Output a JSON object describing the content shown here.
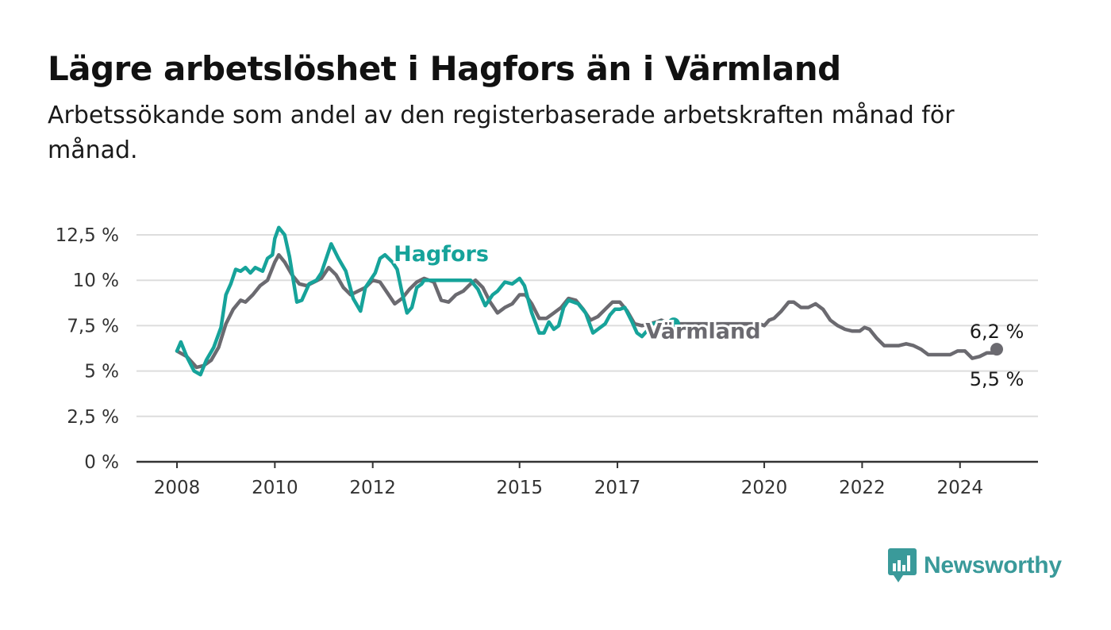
{
  "header": {
    "title": "Lägre arbetslöshet i Hagfors än i Värmland",
    "subtitle": "Arbetssökande som andel av den registerbaserade arbetskraften månad för månad."
  },
  "logo": {
    "text": "Newsworthy",
    "icon": "newsworthy-logo-icon"
  },
  "colors": {
    "hagfors": "#16a39a",
    "varmland": "#6b6a70",
    "grid": "#dddddd",
    "axis": "#333333"
  },
  "chart_data": {
    "type": "line",
    "xlim": [
      2008.0,
      2024.75
    ],
    "ylim": [
      0,
      12.5
    ],
    "x_ticks": [
      {
        "value": 2008,
        "label": "2008"
      },
      {
        "value": 2010,
        "label": "2010"
      },
      {
        "value": 2012,
        "label": "2012"
      },
      {
        "value": 2015,
        "label": "2015"
      },
      {
        "value": 2017,
        "label": "2017"
      },
      {
        "value": 2020,
        "label": "2020"
      },
      {
        "value": 2022,
        "label": "2022"
      },
      {
        "value": 2024,
        "label": "2024"
      }
    ],
    "y_ticks": [
      {
        "value": 0,
        "label": "0 %"
      },
      {
        "value": 2.5,
        "label": "2,5 %"
      },
      {
        "value": 5,
        "label": "5 %"
      },
      {
        "value": 7.5,
        "label": "7,5 %"
      },
      {
        "value": 10,
        "label": "10 %"
      },
      {
        "value": 12.5,
        "label": "12,5 %"
      }
    ],
    "grid": true,
    "series": [
      {
        "name": "Värmland",
        "color": "#6b6a70",
        "label": "Värmland",
        "end_label": "6,2 %",
        "points": [
          [
            2008.0,
            6.1
          ],
          [
            2008.2,
            5.8
          ],
          [
            2008.4,
            5.2
          ],
          [
            2008.55,
            5.3
          ],
          [
            2008.7,
            5.6
          ],
          [
            2008.85,
            6.3
          ],
          [
            2009.0,
            7.6
          ],
          [
            2009.15,
            8.4
          ],
          [
            2009.3,
            8.9
          ],
          [
            2009.4,
            8.8
          ],
          [
            2009.55,
            9.2
          ],
          [
            2009.7,
            9.7
          ],
          [
            2009.85,
            10.0
          ],
          [
            2010.0,
            11.0
          ],
          [
            2010.08,
            11.4
          ],
          [
            2010.2,
            11.0
          ],
          [
            2010.35,
            10.3
          ],
          [
            2010.5,
            9.8
          ],
          [
            2010.65,
            9.7
          ],
          [
            2010.8,
            9.9
          ],
          [
            2010.95,
            10.1
          ],
          [
            2011.1,
            10.7
          ],
          [
            2011.25,
            10.3
          ],
          [
            2011.4,
            9.6
          ],
          [
            2011.55,
            9.2
          ],
          [
            2011.7,
            9.4
          ],
          [
            2011.85,
            9.6
          ],
          [
            2012.0,
            10.0
          ],
          [
            2012.15,
            9.9
          ],
          [
            2012.3,
            9.3
          ],
          [
            2012.45,
            8.7
          ],
          [
            2012.6,
            9.0
          ],
          [
            2012.75,
            9.5
          ],
          [
            2012.9,
            9.9
          ],
          [
            2013.05,
            10.1
          ],
          [
            2013.25,
            9.9
          ],
          [
            2013.4,
            8.9
          ],
          [
            2013.55,
            8.8
          ],
          [
            2013.7,
            9.2
          ],
          [
            2013.85,
            9.4
          ],
          [
            2014.0,
            9.8
          ],
          [
            2014.1,
            10.0
          ],
          [
            2014.25,
            9.6
          ],
          [
            2014.4,
            8.8
          ],
          [
            2014.55,
            8.2
          ],
          [
            2014.7,
            8.5
          ],
          [
            2014.85,
            8.7
          ],
          [
            2015.0,
            9.2
          ],
          [
            2015.12,
            9.2
          ],
          [
            2015.25,
            8.7
          ],
          [
            2015.4,
            7.9
          ],
          [
            2015.55,
            7.9
          ],
          [
            2015.7,
            8.2
          ],
          [
            2015.85,
            8.5
          ],
          [
            2016.0,
            9.0
          ],
          [
            2016.15,
            8.9
          ],
          [
            2016.3,
            8.4
          ],
          [
            2016.45,
            7.8
          ],
          [
            2016.6,
            8.0
          ],
          [
            2016.75,
            8.4
          ],
          [
            2016.9,
            8.8
          ],
          [
            2017.05,
            8.8
          ],
          [
            2017.2,
            8.3
          ],
          [
            2017.35,
            7.6
          ],
          [
            2017.5,
            7.5
          ],
          [
            2017.65,
            7.6
          ],
          [
            2017.8,
            7.7
          ],
          [
            2017.9,
            7.8
          ],
          [
            2018.05,
            7.6
          ],
          [
            2019.9,
            7.6
          ],
          [
            2020.0,
            7.5
          ],
          [
            2020.1,
            7.8
          ],
          [
            2020.2,
            7.9
          ],
          [
            2020.35,
            8.3
          ],
          [
            2020.5,
            8.8
          ],
          [
            2020.6,
            8.8
          ],
          [
            2020.75,
            8.5
          ],
          [
            2020.9,
            8.5
          ],
          [
            2021.05,
            8.7
          ],
          [
            2021.2,
            8.4
          ],
          [
            2021.35,
            7.8
          ],
          [
            2021.5,
            7.5
          ],
          [
            2021.65,
            7.3
          ],
          [
            2021.8,
            7.2
          ],
          [
            2021.95,
            7.2
          ],
          [
            2022.05,
            7.4
          ],
          [
            2022.15,
            7.3
          ],
          [
            2022.3,
            6.8
          ],
          [
            2022.45,
            6.4
          ],
          [
            2022.6,
            6.4
          ],
          [
            2022.75,
            6.4
          ],
          [
            2022.9,
            6.5
          ],
          [
            2023.05,
            6.4
          ],
          [
            2023.2,
            6.2
          ],
          [
            2023.35,
            5.9
          ],
          [
            2023.5,
            5.9
          ],
          [
            2023.65,
            5.9
          ],
          [
            2023.8,
            5.9
          ],
          [
            2023.95,
            6.1
          ],
          [
            2024.1,
            6.1
          ],
          [
            2024.25,
            5.7
          ],
          [
            2024.4,
            5.8
          ],
          [
            2024.55,
            6.0
          ],
          [
            2024.67,
            6.0
          ],
          [
            2024.75,
            6.2
          ]
        ]
      },
      {
        "name": "Hagfors",
        "color": "#16a39a",
        "label": "Hagfors",
        "end_label": "5,5 %",
        "points": [
          [
            2008.0,
            6.1
          ],
          [
            2008.08,
            6.6
          ],
          [
            2008.2,
            5.8
          ],
          [
            2008.35,
            5.0
          ],
          [
            2008.48,
            4.8
          ],
          [
            2008.6,
            5.6
          ],
          [
            2008.75,
            6.3
          ],
          [
            2008.9,
            7.4
          ],
          [
            2009.0,
            9.2
          ],
          [
            2009.1,
            9.8
          ],
          [
            2009.2,
            10.6
          ],
          [
            2009.3,
            10.5
          ],
          [
            2009.4,
            10.7
          ],
          [
            2009.5,
            10.4
          ],
          [
            2009.6,
            10.7
          ],
          [
            2009.75,
            10.5
          ],
          [
            2009.85,
            11.2
          ],
          [
            2009.95,
            11.4
          ],
          [
            2010.0,
            12.3
          ],
          [
            2010.08,
            12.9
          ],
          [
            2010.2,
            12.5
          ],
          [
            2010.3,
            11.3
          ],
          [
            2010.45,
            8.8
          ],
          [
            2010.55,
            8.9
          ],
          [
            2010.7,
            9.8
          ],
          [
            2010.85,
            10.0
          ],
          [
            2010.95,
            10.4
          ],
          [
            2011.05,
            11.2
          ],
          [
            2011.15,
            12.0
          ],
          [
            2011.3,
            11.2
          ],
          [
            2011.45,
            10.5
          ],
          [
            2011.6,
            9.0
          ],
          [
            2011.75,
            8.3
          ],
          [
            2011.85,
            9.6
          ],
          [
            2011.95,
            10.0
          ],
          [
            2012.05,
            10.4
          ],
          [
            2012.15,
            11.2
          ],
          [
            2012.25,
            11.4
          ],
          [
            2012.4,
            11.0
          ],
          [
            2012.5,
            10.6
          ],
          [
            2012.6,
            9.3
          ],
          [
            2012.7,
            8.2
          ],
          [
            2012.8,
            8.5
          ],
          [
            2012.9,
            9.6
          ],
          [
            2013.0,
            9.8
          ],
          [
            2013.05,
            10.0
          ],
          [
            2014.0,
            10.0
          ],
          [
            2014.15,
            9.5
          ],
          [
            2014.3,
            8.6
          ],
          [
            2014.45,
            9.2
          ],
          [
            2014.55,
            9.4
          ],
          [
            2014.7,
            9.9
          ],
          [
            2014.85,
            9.8
          ],
          [
            2015.0,
            10.1
          ],
          [
            2015.1,
            9.7
          ],
          [
            2015.25,
            8.2
          ],
          [
            2015.4,
            7.1
          ],
          [
            2015.5,
            7.1
          ],
          [
            2015.6,
            7.7
          ],
          [
            2015.7,
            7.3
          ],
          [
            2015.8,
            7.5
          ],
          [
            2015.9,
            8.5
          ],
          [
            2016.0,
            8.9
          ],
          [
            2016.1,
            8.8
          ],
          [
            2016.2,
            8.7
          ],
          [
            2016.35,
            8.2
          ],
          [
            2016.5,
            7.1
          ],
          [
            2016.6,
            7.3
          ],
          [
            2016.75,
            7.6
          ],
          [
            2016.85,
            8.1
          ],
          [
            2016.95,
            8.4
          ],
          [
            2017.05,
            8.4
          ],
          [
            2017.15,
            8.5
          ],
          [
            2017.3,
            7.7
          ],
          [
            2017.4,
            7.1
          ],
          [
            2017.5,
            6.9
          ],
          [
            2017.6,
            7.2
          ],
          [
            2017.72,
            7.6
          ],
          [
            2017.85,
            7.7
          ],
          [
            2018.0,
            7.7
          ],
          [
            2018.15,
            7.6
          ]
        ]
      }
    ]
  }
}
